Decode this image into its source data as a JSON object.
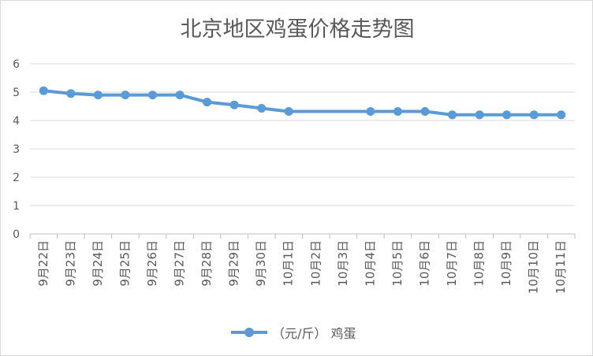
{
  "chart_data": {
    "type": "line",
    "title": "北京地区鸡蛋价格走势图",
    "categories": [
      "9月22日",
      "9月23日",
      "9月24日",
      "9月25日",
      "9月26日",
      "9月27日",
      "9月28日",
      "9月29日",
      "9月30日",
      "10月1日",
      "10月2日",
      "10月3日",
      "10月4日",
      "10月5日",
      "10月6日",
      "10月7日",
      "10月8日",
      "10月9日",
      "10月10日",
      "10月11日"
    ],
    "series": [
      {
        "name": "（元/斤） 鸡蛋",
        "values": [
          5.05,
          4.95,
          4.9,
          4.9,
          4.9,
          4.9,
          4.65,
          4.55,
          4.43,
          4.32,
          null,
          null,
          4.32,
          4.32,
          4.32,
          4.2,
          4.2,
          4.2,
          4.2,
          4.2
        ],
        "color": "#5b9bd5"
      }
    ],
    "ylim": [
      0,
      6
    ],
    "yticks": [
      "0",
      "1",
      "2",
      "3",
      "4",
      "5",
      "6"
    ],
    "xlabel": "",
    "ylabel": "",
    "grid": true,
    "legend_position": "bottom",
    "gap_handling": "connect"
  }
}
